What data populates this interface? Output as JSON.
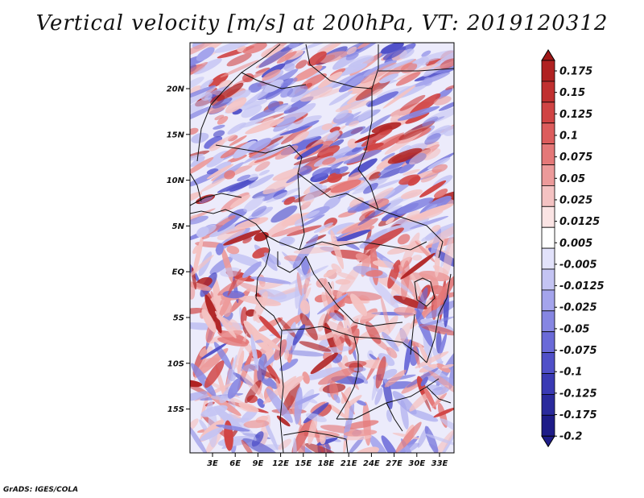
{
  "title": "Vertical velocity [m/s] at 200hPa, VT: 2019120312",
  "credit": "GrADS: IGES/COLA",
  "map": {
    "lat_ticks": [
      "20N",
      "15N",
      "10N",
      "5N",
      "EQ",
      "5S",
      "10S",
      "15S"
    ],
    "lon_ticks": [
      "3E",
      "6E",
      "9E",
      "12E",
      "15E",
      "18E",
      "21E",
      "24E",
      "27E",
      "30E",
      "33E"
    ]
  },
  "colorbar": {
    "labels": [
      "0.175",
      "0.15",
      "0.125",
      "0.1",
      "0.075",
      "0.05",
      "0.025",
      "0.0125",
      "0.005",
      "-0.005",
      "-0.0125",
      "-0.025",
      "-0.05",
      "-0.075",
      "-0.1",
      "-0.125",
      "-0.175",
      "-0.2"
    ],
    "colors": [
      "#a01818",
      "#b02222",
      "#c03030",
      "#d04444",
      "#dc5c5c",
      "#e47878",
      "#ec9a9a",
      "#f4c2c2",
      "#fbe4e4",
      "#ffffff",
      "#e2e2fb",
      "#c4c4f3",
      "#a4a4ec",
      "#8686e2",
      "#6a6ad8",
      "#5050c8",
      "#3a3ab4",
      "#2a2a9c",
      "#1e1c88"
    ]
  }
}
